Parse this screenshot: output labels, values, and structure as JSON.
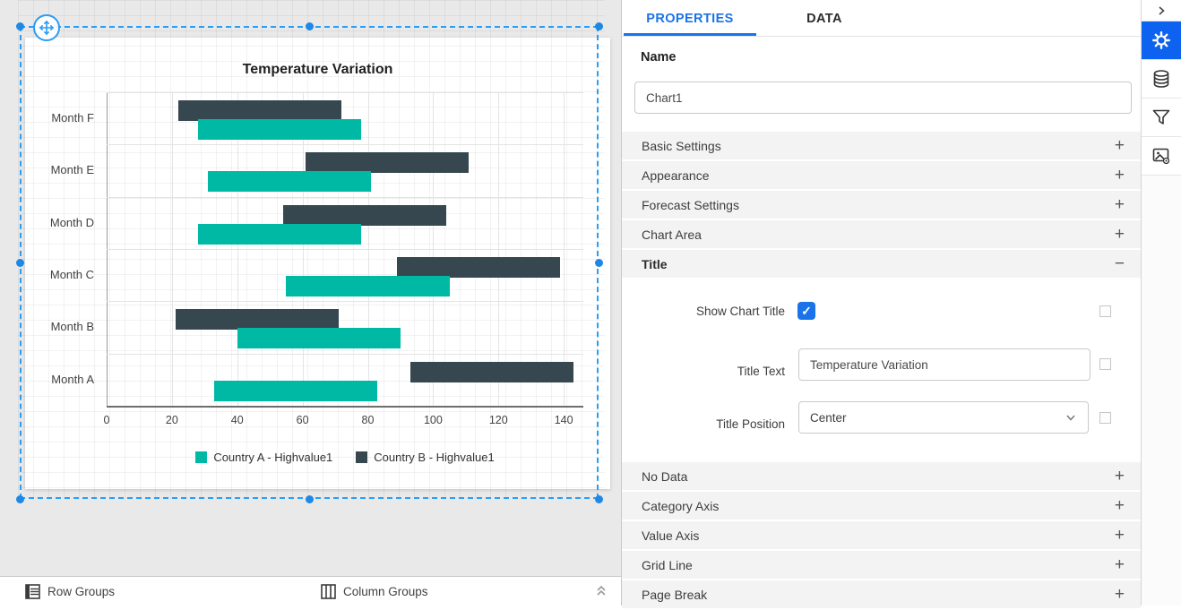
{
  "colors": {
    "accent_blue": "#1a73e8",
    "icon_active_bg": "#0d62f0",
    "selection_blue": "#2a9df4",
    "series_a_teal": "#00b9a5",
    "series_b_slate": "#37474f"
  },
  "chart_data": {
    "type": "bar",
    "subtype": "horizontal-range-bar",
    "title": "Temperature Variation",
    "categories_top_to_bottom": [
      "Month F",
      "Month E",
      "Month D",
      "Month C",
      "Month B",
      "Month A"
    ],
    "series": [
      {
        "name": "Country A - Highvalue1",
        "color": "#00b9a5",
        "ranges": [
          [
            28,
            78
          ],
          [
            31,
            81
          ],
          [
            28,
            78
          ],
          [
            55,
            105
          ],
          [
            40,
            90
          ],
          [
            33,
            83
          ]
        ]
      },
      {
        "name": "Country B - Highvalue1",
        "color": "#37474f",
        "ranges": [
          [
            22,
            72
          ],
          [
            61,
            111
          ],
          [
            54,
            104
          ],
          [
            89,
            139
          ],
          [
            21,
            71
          ],
          [
            93,
            143
          ]
        ]
      }
    ],
    "x_ticks": [
      0,
      20,
      40,
      60,
      80,
      100,
      120,
      140
    ],
    "xlim": [
      0,
      146
    ],
    "xlabel": "",
    "ylabel": "",
    "grid": true,
    "legend_position": "bottom"
  },
  "properties_panel": {
    "tabs": [
      {
        "label": "PROPERTIES",
        "active": true
      },
      {
        "label": "DATA",
        "active": false
      }
    ],
    "name_field": {
      "label": "Name",
      "value": "Chart1"
    },
    "sections_above": [
      {
        "label": "Basic Settings",
        "expanded": false
      },
      {
        "label": "Appearance",
        "expanded": false
      },
      {
        "label": "Forecast Settings",
        "expanded": false
      },
      {
        "label": "Chart Area",
        "expanded": false
      },
      {
        "label": "Title",
        "expanded": true
      }
    ],
    "title_section": {
      "show_chart_title": {
        "label": "Show Chart Title",
        "checked": true
      },
      "title_text": {
        "label": "Title Text",
        "value": "Temperature Variation"
      },
      "title_position": {
        "label": "Title Position",
        "value": "Center"
      }
    },
    "sections_below": [
      {
        "label": "No Data",
        "expanded": false
      },
      {
        "label": "Category Axis",
        "expanded": false
      },
      {
        "label": "Value Axis",
        "expanded": false
      },
      {
        "label": "Grid Line",
        "expanded": false
      },
      {
        "label": "Page Break",
        "expanded": false
      }
    ]
  },
  "bottom_bar": {
    "row_groups_label": "Row Groups",
    "column_groups_label": "Column Groups"
  }
}
